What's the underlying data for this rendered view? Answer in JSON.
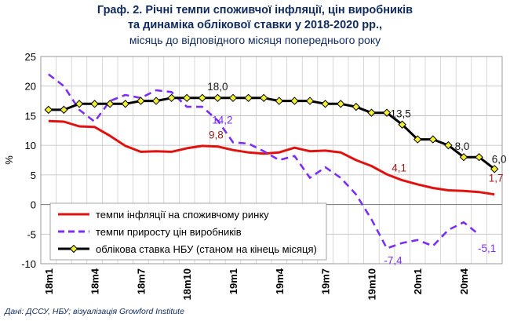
{
  "header": {
    "line1": "Граф. 2. Річні темпи споживчої інфляції, цін виробників",
    "line2": "та динаміка облікової ставки у 2018-2020 рр.,",
    "line3": "місяць до відповідного місяця попереднього року"
  },
  "source": "Дані: ДССУ, НБУ; візуалізація Growford Institute",
  "chart_data": {
    "type": "line",
    "ylabel": "%",
    "ylim": [
      -10,
      25
    ],
    "yticks": [
      -10,
      -5,
      0,
      5,
      10,
      15,
      20,
      25
    ],
    "xtick_labels": [
      "18m1",
      "18m4",
      "18m7",
      "18m10",
      "19m1",
      "19m4",
      "19m7",
      "19m10",
      "20m1",
      "20m4"
    ],
    "xtick_indices": [
      0,
      3,
      6,
      9,
      12,
      15,
      18,
      21,
      24,
      27
    ],
    "n_months": 30,
    "grid": true,
    "legend_position": "bottom-left",
    "series": [
      {
        "name": "темпи інфляції на споживчому ринку",
        "style": "solid",
        "color": "#e0120f",
        "values": [
          14.1,
          14.0,
          13.2,
          13.1,
          11.6,
          9.9,
          8.9,
          9.0,
          8.9,
          9.5,
          9.9,
          9.8,
          9.2,
          8.8,
          8.6,
          8.8,
          9.6,
          9.0,
          9.1,
          8.8,
          7.5,
          6.5,
          5.1,
          4.1,
          3.4,
          2.8,
          2.4,
          2.3,
          2.1,
          1.7
        ]
      },
      {
        "name": "темпи приросту цін виробників",
        "style": "dashed",
        "color": "#7b2ff2",
        "values": [
          22.0,
          20.0,
          16.0,
          14.0,
          17.5,
          18.5,
          18.0,
          19.3,
          19.0,
          16.5,
          16.5,
          14.2,
          10.5,
          10.3,
          9.0,
          7.5,
          8.2,
          4.5,
          6.3,
          4.5,
          1.7,
          -2.5,
          -7.4,
          -6.5,
          -6.0,
          -7.0,
          -4.3,
          -3.0,
          -5.1,
          null
        ]
      },
      {
        "name": "облікова ставка НБУ (станом на кінець місяця)",
        "style": "solid-markers",
        "color": "#000000",
        "marker_color": "#f2ef35",
        "values": [
          16.0,
          16.0,
          17.0,
          17.0,
          17.0,
          17.0,
          17.5,
          17.5,
          18.0,
          18.0,
          18.0,
          18.0,
          18.0,
          18.0,
          18.0,
          17.5,
          17.5,
          17.5,
          17.0,
          17.0,
          16.5,
          15.5,
          15.5,
          13.5,
          11.0,
          11.0,
          10.0,
          8.0,
          8.0,
          6.0
        ]
      }
    ],
    "annotations": [
      {
        "text": "18,0",
        "series": 2,
        "index": 11,
        "color": "#1a1a1a"
      },
      {
        "text": "13,5",
        "series": 2,
        "index": 23,
        "color": "#1a1a1a"
      },
      {
        "text": "8,0",
        "series": 2,
        "index": 27,
        "color": "#1a1a1a"
      },
      {
        "text": "6,0",
        "series": 2,
        "index": 29,
        "color": "#1a1a1a"
      },
      {
        "text": "14,2",
        "series": 1,
        "index": 11,
        "color": "#7b2ff2"
      },
      {
        "text": "-7,4",
        "series": 1,
        "index": 22,
        "color": "#7b2ff2"
      },
      {
        "text": "-5,1",
        "series": 1,
        "index": 28,
        "color": "#7b2ff2"
      },
      {
        "text": "9,8",
        "series": 0,
        "index": 11,
        "color": "#9b1b1b"
      },
      {
        "text": "4,1",
        "series": 0,
        "index": 23,
        "color": "#9b1b1b"
      },
      {
        "text": "1,7",
        "series": 0,
        "index": 29,
        "color": "#9b1b1b"
      }
    ]
  }
}
